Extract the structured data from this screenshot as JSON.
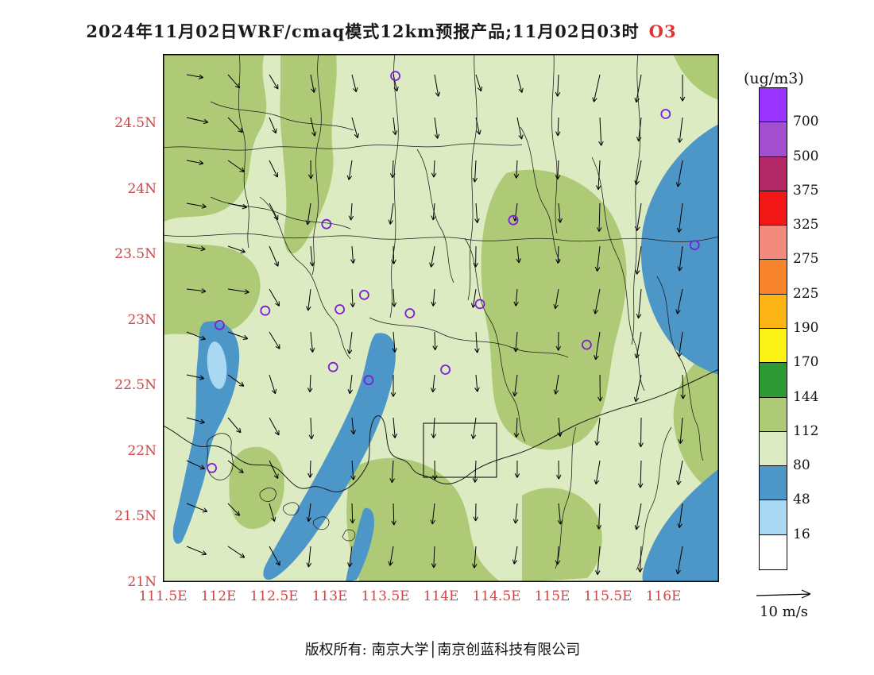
{
  "title": {
    "main": "2024年11月02日WRF/cmaq模式12km预报产品;11月02日03时",
    "species": "O3",
    "species_color": "#e03333"
  },
  "axes": {
    "lat_labels": [
      "24.5N",
      "24N",
      "23.5N",
      "23N",
      "22.5N",
      "22N",
      "21.5N",
      "21N"
    ],
    "lon_labels": [
      "111.5E",
      "112E",
      "112.5E",
      "113E",
      "113.5E",
      "114E",
      "114.5E",
      "115E",
      "115.5E",
      "116E"
    ],
    "label_color": "#cc4747"
  },
  "colorbar": {
    "unit_label": "(ug/m3)",
    "tick_labels": [
      "700",
      "500",
      "375",
      "325",
      "275",
      "225",
      "190",
      "170",
      "144",
      "112",
      "80",
      "48",
      "16"
    ],
    "colors_top_to_bottom": [
      "#9933ff",
      "#a24fd0",
      "#b32965",
      "#f21818",
      "#f28b7d",
      "#f8842d",
      "#fcb514",
      "#fcf316",
      "#2f9a35",
      "#aeca76",
      "#dcebc2",
      "#4d96c8",
      "#a8d8f2",
      "#ffffff"
    ]
  },
  "wind_legend": {
    "label": "10 m/s"
  },
  "footer": {
    "text": "版权所有: 南京大学│南京创蓝科技有限公司"
  },
  "chart_data": {
    "type": "heatmap",
    "title": "2024年11月02日WRF/cmaq模式12km预报产品;11月02日03时 O3",
    "model": "WRF/CMAQ 12km",
    "variable": "O3",
    "unit": "ug/m3",
    "valid_time_label": "11月02日03时",
    "lon_range": [
      111.5,
      116.5
    ],
    "lat_range": [
      21.0,
      25.0
    ],
    "lon_ticks": [
      "111.5E",
      "112E",
      "112.5E",
      "113E",
      "113.5E",
      "114E",
      "114.5E",
      "115E",
      "115.5E",
      "116E"
    ],
    "lat_ticks": [
      "21N",
      "21.5N",
      "22N",
      "22.5N",
      "23N",
      "23.5N",
      "24N",
      "24.5N"
    ],
    "contour_levels": [
      16,
      48,
      80,
      112,
      144,
      170,
      190,
      225,
      275,
      325,
      375,
      500,
      700
    ],
    "palette_top_to_bottom": [
      "#9933ff",
      "#a24fd0",
      "#b32965",
      "#f21818",
      "#f28b7d",
      "#f8842d",
      "#fcb514",
      "#fcf316",
      "#2f9a35",
      "#aeca76",
      "#dcebc2",
      "#4d96c8",
      "#a8d8f2",
      "#ffffff"
    ],
    "field_description": [
      {
        "range": "80-112",
        "color": "#dcebc2",
        "coverage": "dominant pale-green background over most of the domain"
      },
      {
        "range": "112-144",
        "color": "#aeca76",
        "coverage": "olive areas: northwest corner, north-central band, large central-east blob, southern coastal patches"
      },
      {
        "range": "48-80",
        "color": "#4d96c8",
        "coverage": "blue: eastern edge crescent, southeast corner, Pearl River estuary band, elongated western band"
      },
      {
        "range": "16-48",
        "color": "#a8d8f2",
        "coverage": "light-blue core inside the western band"
      }
    ],
    "stations_lonlat": [
      [
        113.59,
        24.86
      ],
      [
        116.02,
        24.57
      ],
      [
        116.28,
        23.57
      ],
      [
        112.97,
        23.73
      ],
      [
        114.65,
        23.76
      ],
      [
        112.42,
        23.07
      ],
      [
        113.09,
        23.08
      ],
      [
        113.31,
        23.19
      ],
      [
        113.72,
        23.05
      ],
      [
        114.35,
        23.12
      ],
      [
        115.31,
        22.81
      ],
      [
        113.03,
        22.64
      ],
      [
        113.35,
        22.54
      ],
      [
        114.04,
        22.62
      ],
      [
        111.94,
        21.87
      ],
      [
        112.01,
        22.96
      ]
    ],
    "wind": {
      "reference": "10 m/s",
      "pattern": "mostly northerly (arrows pointing south); turning easterly in the northwest; strongest along the eastern edge",
      "grid": {
        "cols": 13,
        "rows": 12
      }
    }
  }
}
